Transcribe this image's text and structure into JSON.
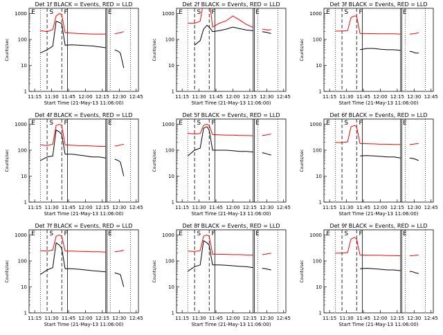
{
  "common": {
    "title_suffix": "BLACK = Events, RED = LLD",
    "xlabel": "Start Time (21-May-13 11:06:00)",
    "ylabel": "Counts/sec",
    "x_ticks": [
      "11:15",
      "11:30",
      "11:45",
      "12:00",
      "12:15",
      "12:30",
      "12:45"
    ],
    "y_ticks": [
      "1",
      "10",
      "100",
      "1000"
    ],
    "series_colors": {
      "events": "#000000",
      "lld": "#ff0000"
    }
  },
  "chart_data": [
    {
      "type": "line",
      "title": "Det 1f",
      "markers": [
        "E",
        "S",
        "F",
        "E"
      ],
      "x": [
        "11:14",
        "11:20",
        "11:26",
        "11:31",
        "11:34",
        "11:37",
        "11:39",
        "11:42",
        "11:48",
        "11:54",
        "12:00",
        "12:06",
        "12:12",
        "12:18",
        "12:22",
        "12:26",
        "12:29",
        "12:31",
        "12:34"
      ],
      "series": [
        {
          "key": "events",
          "values": [
            null,
            30,
            40,
            55,
            500,
            450,
            400,
            60,
            62,
            60,
            58,
            56,
            52,
            48,
            null,
            40,
            35,
            30,
            8
          ]
        },
        {
          "key": "lld",
          "values": [
            null,
            220,
            200,
            240,
            800,
            1000,
            900,
            180,
            175,
            170,
            165,
            160,
            160,
            160,
            null,
            165,
            175,
            180,
            200
          ]
        }
      ]
    },
    {
      "type": "line",
      "title": "Det 2f",
      "markers": [
        "E",
        "S",
        "F",
        "E"
      ],
      "x": [
        "11:14",
        "11:20",
        "11:26",
        "11:31",
        "11:34",
        "11:37",
        "11:39",
        "11:42",
        "11:48",
        "11:54",
        "12:00",
        "12:06",
        "12:12",
        "12:18",
        "12:22",
        "12:26",
        "12:29",
        "12:31",
        "12:34"
      ],
      "series": [
        {
          "key": "events",
          "values": [
            null,
            null,
            60,
            90,
            250,
            350,
            300,
            200,
            220,
            250,
            300,
            260,
            230,
            220,
            null,
            200,
            190,
            180,
            170
          ]
        },
        {
          "key": "lld",
          "values": [
            null,
            420,
            420,
            500,
            3000,
            5000,
            4000,
            300,
            420,
            520,
            800,
            560,
            380,
            290,
            null,
            250,
            240,
            230,
            240
          ]
        }
      ]
    },
    {
      "type": "line",
      "title": "Det 3f",
      "markers": [
        "E",
        "S",
        "F",
        "E"
      ],
      "x": [
        "11:14",
        "11:20",
        "11:26",
        "11:31",
        "11:34",
        "11:37",
        "11:39",
        "11:42",
        "11:48",
        "11:54",
        "12:00",
        "12:06",
        "12:12",
        "12:18",
        "12:22",
        "12:26",
        "12:29",
        "12:31",
        "12:34"
      ],
      "series": [
        {
          "key": "events",
          "values": [
            null,
            null,
            null,
            null,
            null,
            null,
            null,
            40,
            45,
            45,
            42,
            40,
            40,
            38,
            null,
            35,
            33,
            30,
            30
          ]
        },
        {
          "key": "lld",
          "values": [
            null,
            210,
            210,
            220,
            700,
            800,
            800,
            170,
            170,
            168,
            165,
            165,
            165,
            160,
            null,
            160,
            165,
            170,
            180
          ]
        }
      ]
    },
    {
      "type": "line",
      "title": "Det 4f",
      "markers": [
        "E",
        "S",
        "F",
        "E"
      ],
      "x": [
        "11:14",
        "11:20",
        "11:26",
        "11:31",
        "11:34",
        "11:37",
        "11:39",
        "11:42",
        "11:48",
        "11:54",
        "12:00",
        "12:06",
        "12:12",
        "12:18",
        "12:22",
        "12:26",
        "12:29",
        "12:31",
        "12:34"
      ],
      "series": [
        {
          "key": "events",
          "values": [
            null,
            40,
            55,
            60,
            600,
            500,
            400,
            70,
            70,
            65,
            60,
            55,
            55,
            50,
            null,
            45,
            40,
            35,
            10
          ]
        },
        {
          "key": "lld",
          "values": [
            null,
            160,
            150,
            170,
            900,
            1000,
            900,
            160,
            155,
            150,
            150,
            145,
            140,
            140,
            null,
            145,
            150,
            160,
            170
          ]
        }
      ]
    },
    {
      "type": "line",
      "title": "Det 5f",
      "markers": [
        "E",
        "S",
        "F",
        "E"
      ],
      "x": [
        "11:14",
        "11:20",
        "11:26",
        "11:31",
        "11:34",
        "11:37",
        "11:39",
        "11:42",
        "11:48",
        "11:54",
        "12:00",
        "12:06",
        "12:12",
        "12:18",
        "12:22",
        "12:26",
        "12:29",
        "12:31",
        "12:34"
      ],
      "series": [
        {
          "key": "events",
          "values": [
            null,
            60,
            100,
            120,
            700,
            800,
            600,
            100,
            100,
            100,
            95,
            90,
            90,
            85,
            null,
            80,
            75,
            70,
            65
          ]
        },
        {
          "key": "lld",
          "values": [
            null,
            450,
            420,
            440,
            900,
            1000,
            900,
            400,
            390,
            380,
            380,
            370,
            370,
            360,
            null,
            370,
            380,
            400,
            420
          ]
        }
      ]
    },
    {
      "type": "line",
      "title": "Det 6f",
      "markers": [
        "E",
        "S",
        "F",
        "E"
      ],
      "x": [
        "11:14",
        "11:20",
        "11:26",
        "11:31",
        "11:34",
        "11:37",
        "11:39",
        "11:42",
        "11:48",
        "11:54",
        "12:00",
        "12:06",
        "12:12",
        "12:18",
        "12:22",
        "12:26",
        "12:29",
        "12:31",
        "12:34"
      ],
      "series": [
        {
          "key": "events",
          "values": [
            null,
            null,
            null,
            null,
            null,
            null,
            null,
            60,
            62,
            60,
            58,
            55,
            55,
            50,
            null,
            50,
            48,
            45,
            40
          ]
        },
        {
          "key": "lld",
          "values": [
            null,
            200,
            195,
            210,
            800,
            900,
            800,
            180,
            178,
            175,
            170,
            170,
            165,
            165,
            null,
            165,
            170,
            175,
            180
          ]
        }
      ]
    },
    {
      "type": "line",
      "title": "Det 7f",
      "markers": [
        "E",
        "S",
        "F",
        "E"
      ],
      "x": [
        "11:14",
        "11:20",
        "11:26",
        "11:31",
        "11:34",
        "11:37",
        "11:39",
        "11:42",
        "11:48",
        "11:54",
        "12:00",
        "12:06",
        "12:12",
        "12:18",
        "12:22",
        "12:26",
        "12:29",
        "12:31",
        "12:34"
      ],
      "series": [
        {
          "key": "events",
          "values": [
            null,
            30,
            45,
            55,
            500,
            400,
            300,
            50,
            50,
            48,
            45,
            42,
            40,
            38,
            null,
            35,
            32,
            30,
            10
          ]
        },
        {
          "key": "lld",
          "values": [
            null,
            250,
            240,
            260,
            900,
            1000,
            900,
            240,
            240,
            235,
            230,
            225,
            225,
            220,
            null,
            225,
            235,
            240,
            260
          ]
        }
      ]
    },
    {
      "type": "line",
      "title": "Det 8f",
      "markers": [
        "E",
        "S",
        "F",
        "E"
      ],
      "x": [
        "11:14",
        "11:20",
        "11:26",
        "11:31",
        "11:34",
        "11:37",
        "11:39",
        "11:42",
        "11:48",
        "11:54",
        "12:00",
        "12:06",
        "12:12",
        "12:18",
        "12:22",
        "12:26",
        "12:29",
        "12:31",
        "12:34"
      ],
      "series": [
        {
          "key": "events",
          "values": [
            null,
            40,
            60,
            70,
            600,
            500,
            400,
            70,
            70,
            68,
            65,
            62,
            60,
            55,
            null,
            52,
            50,
            48,
            45
          ]
        },
        {
          "key": "lld",
          "values": [
            null,
            240,
            230,
            250,
            900,
            1000,
            900,
            180,
            180,
            178,
            175,
            175,
            170,
            170,
            null,
            175,
            180,
            190,
            200
          ]
        }
      ]
    },
    {
      "type": "line",
      "title": "Det 9f",
      "markers": [
        "E",
        "S",
        "F",
        "E"
      ],
      "x": [
        "11:14",
        "11:20",
        "11:26",
        "11:31",
        "11:34",
        "11:37",
        "11:39",
        "11:42",
        "11:48",
        "11:54",
        "12:00",
        "12:06",
        "12:12",
        "12:18",
        "12:22",
        "12:26",
        "12:29",
        "12:31",
        "12:34"
      ],
      "series": [
        {
          "key": "events",
          "values": [
            null,
            null,
            null,
            null,
            null,
            null,
            null,
            50,
            52,
            50,
            48,
            45,
            45,
            42,
            null,
            40,
            38,
            35,
            33
          ]
        },
        {
          "key": "lld",
          "values": [
            null,
            200,
            200,
            210,
            700,
            800,
            700,
            170,
            168,
            165,
            165,
            160,
            160,
            158,
            null,
            158,
            160,
            165,
            170
          ]
        }
      ]
    }
  ]
}
